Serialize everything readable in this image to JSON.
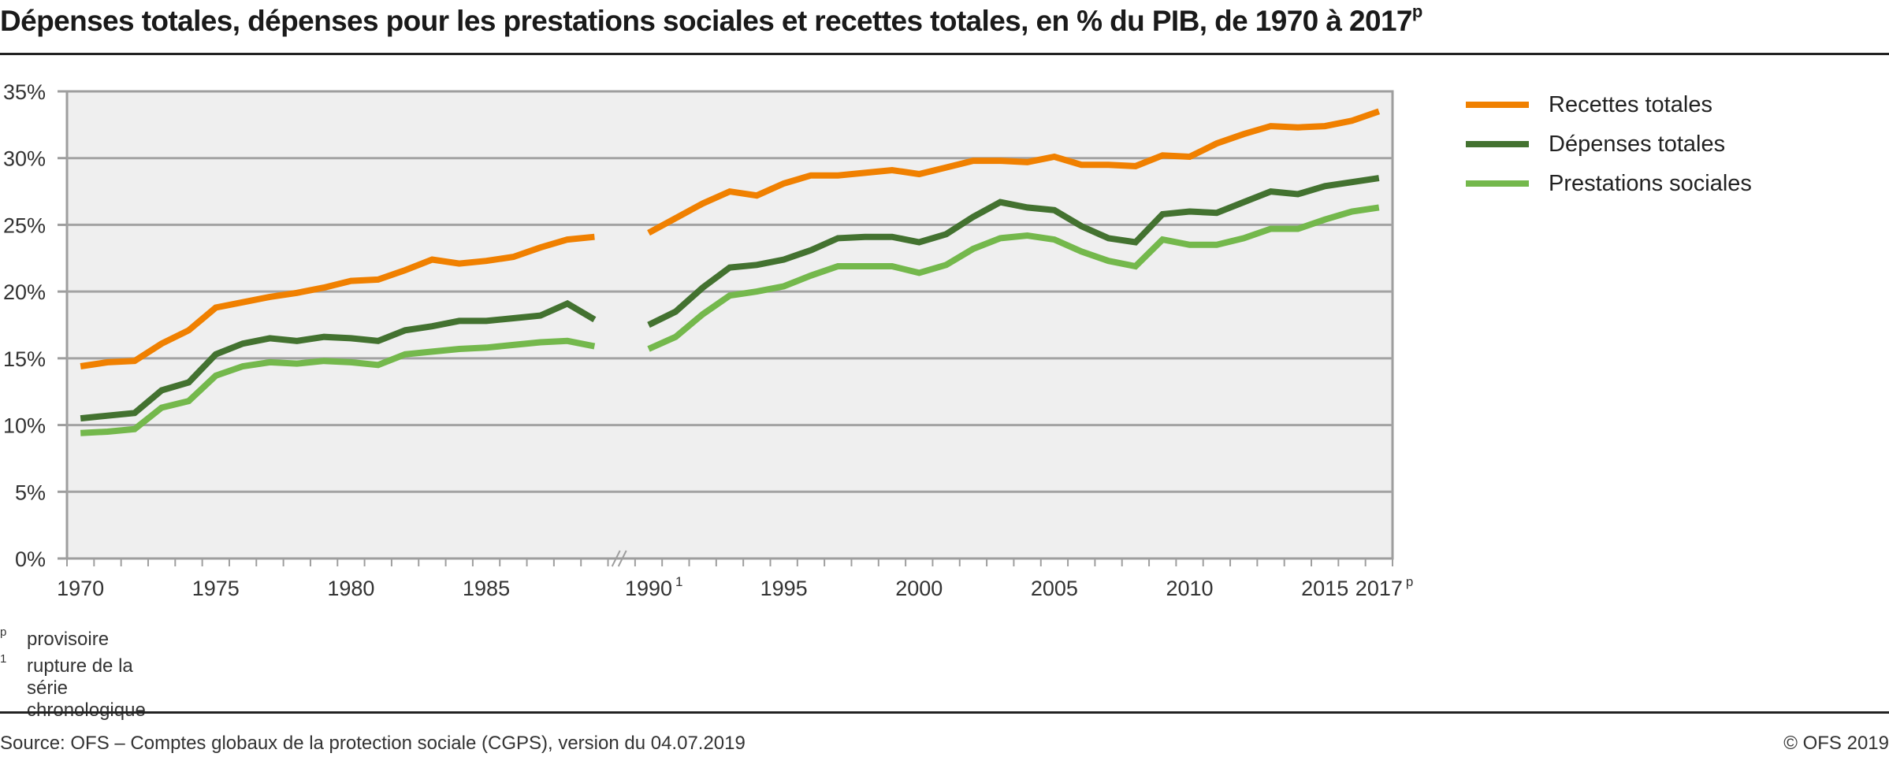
{
  "header": {
    "title": "Dépenses totales, dépenses pour les prestations sociales et recettes totales, en % du PIB, de 1970 à 2017",
    "title_sup": "p"
  },
  "legend": [
    {
      "label": "Recettes totales",
      "color": "#f08000"
    },
    {
      "label": "Dépenses totales",
      "color": "#437230"
    },
    {
      "label": "Prestations sociales",
      "color": "#74b84c"
    }
  ],
  "footnotes": [
    {
      "mark": "p",
      "text": "provisoire"
    },
    {
      "mark": "1",
      "text": "rupture de la série chronologique"
    }
  ],
  "footer": {
    "source": "Source: OFS – Comptes globaux de la protection sociale (CGPS), version du 04.07.2019",
    "copyright": "© OFS 2019"
  },
  "chart_data": {
    "type": "line",
    "title": "Dépenses totales, dépenses pour les prestations sociales et recettes totales, en % du PIB, de 1970 à 2017p",
    "xlabel": "",
    "ylabel": "",
    "ylim": [
      0,
      35
    ],
    "yticks": [
      "0%",
      "5%",
      "10%",
      "15%",
      "20%",
      "25%",
      "30%",
      "35%"
    ],
    "ytick_values": [
      0,
      5,
      10,
      15,
      20,
      25,
      30,
      35
    ],
    "xtick_labels": [
      {
        "year": 1970,
        "label": "1970",
        "sup": ""
      },
      {
        "year": 1975,
        "label": "1975",
        "sup": ""
      },
      {
        "year": 1980,
        "label": "1980",
        "sup": ""
      },
      {
        "year": 1985,
        "label": "1985",
        "sup": ""
      },
      {
        "year": 1990,
        "label": "1990",
        "sup": "1"
      },
      {
        "year": 1995,
        "label": "1995",
        "sup": ""
      },
      {
        "year": 2000,
        "label": "2000",
        "sup": ""
      },
      {
        "year": 2005,
        "label": "2005",
        "sup": ""
      },
      {
        "year": 2010,
        "label": "2010",
        "sup": ""
      },
      {
        "year": 2015,
        "label": "2015",
        "sup": ""
      },
      {
        "year": 2017,
        "label": "2017",
        "sup": "p"
      }
    ],
    "grid": "horizontal",
    "axis_break": "between 1989 and 1990",
    "legend_position": "right",
    "segments": [
      {
        "x": [
          1970,
          1971,
          1972,
          1973,
          1974,
          1975,
          1976,
          1977,
          1978,
          1979,
          1980,
          1981,
          1982,
          1983,
          1984,
          1985,
          1986,
          1987,
          1988,
          1989
        ]
      },
      {
        "x": [
          1990,
          1991,
          1992,
          1993,
          1994,
          1995,
          1996,
          1997,
          1998,
          1999,
          2000,
          2001,
          2002,
          2003,
          2004,
          2005,
          2006,
          2007,
          2008,
          2009,
          2010,
          2011,
          2012,
          2013,
          2014,
          2015,
          2016,
          2017
        ]
      }
    ],
    "series": [
      {
        "name": "Recettes totales",
        "color": "#f08000",
        "values": [
          [
            14.4,
            14.7,
            14.8,
            16.1,
            17.1,
            18.8,
            19.2,
            19.6,
            19.9,
            20.3,
            20.8,
            20.9,
            21.6,
            22.4,
            22.1,
            22.3,
            22.6,
            23.3,
            23.9,
            24.1
          ],
          [
            24.4,
            25.5,
            26.6,
            27.5,
            27.2,
            28.1,
            28.7,
            28.7,
            28.9,
            29.1,
            28.8,
            29.3,
            29.8,
            29.8,
            29.7,
            30.1,
            29.5,
            29.5,
            29.4,
            30.2,
            30.1,
            31.1,
            31.8,
            32.4,
            32.3,
            32.4,
            32.8,
            33.5
          ]
        ]
      },
      {
        "name": "Dépenses totales",
        "color": "#437230",
        "values": [
          [
            10.5,
            10.7,
            10.9,
            12.6,
            13.2,
            15.3,
            16.1,
            16.5,
            16.3,
            16.6,
            16.5,
            16.3,
            17.1,
            17.4,
            17.8,
            17.8,
            18.0,
            18.2,
            19.1,
            17.9
          ],
          [
            17.5,
            18.5,
            20.3,
            21.8,
            22.0,
            22.4,
            23.1,
            24.0,
            24.1,
            24.1,
            23.7,
            24.3,
            25.6,
            26.7,
            26.3,
            26.1,
            24.9,
            24.0,
            23.7,
            25.8,
            26.0,
            25.9,
            26.7,
            27.5,
            27.3,
            27.9,
            28.2,
            28.5
          ]
        ]
      },
      {
        "name": "Prestations sociales",
        "color": "#74b84c",
        "values": [
          [
            9.4,
            9.5,
            9.7,
            11.3,
            11.8,
            13.7,
            14.4,
            14.7,
            14.6,
            14.8,
            14.7,
            14.5,
            15.3,
            15.5,
            15.7,
            15.8,
            16.0,
            16.2,
            16.3,
            15.9
          ],
          [
            15.7,
            16.6,
            18.3,
            19.7,
            20.0,
            20.4,
            21.2,
            21.9,
            21.9,
            21.9,
            21.4,
            22.0,
            23.2,
            24.0,
            24.2,
            23.9,
            23.0,
            22.3,
            21.9,
            23.9,
            23.5,
            23.5,
            24.0,
            24.7,
            24.7,
            25.4,
            26.0,
            26.3
          ]
        ]
      }
    ]
  }
}
